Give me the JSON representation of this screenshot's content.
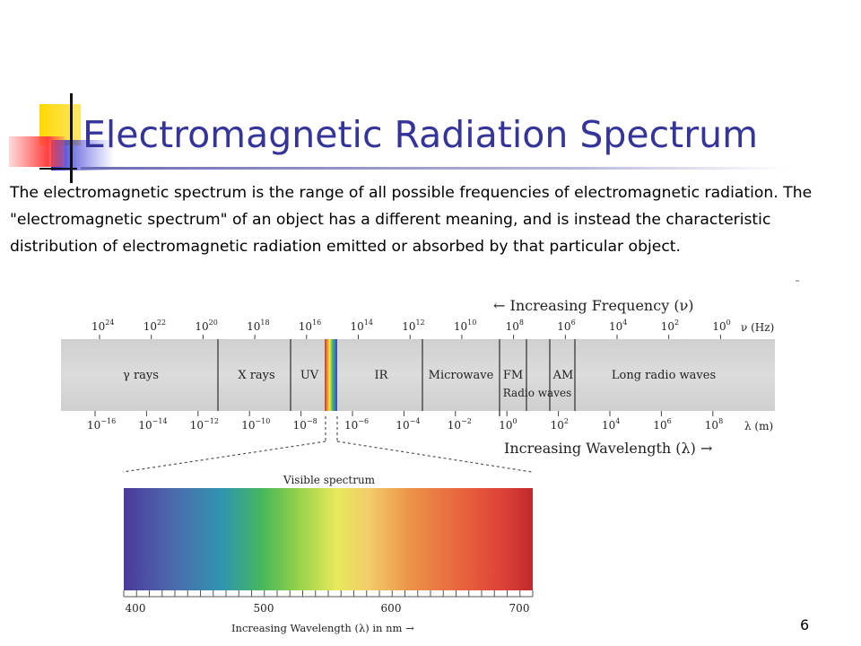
{
  "slide": {
    "title": "Electromagnetic Radiation Spectrum",
    "body": "The electromagnetic spectrum is the range of all possible frequencies of electromagnetic radiation. The \"electromagnetic spectrum\" of an object has a different meaning, and is instead the characteristic distribution of electromagnetic radiation emitted or absorbed by that particular object.",
    "page_number": "6"
  },
  "diagram": {
    "frequency_heading": "← Increasing Frequency (ν)",
    "frequency_unit": "ν (Hz)",
    "frequency_ticks": [
      {
        "base": "10",
        "exp": "24"
      },
      {
        "base": "10",
        "exp": "22"
      },
      {
        "base": "10",
        "exp": "20"
      },
      {
        "base": "10",
        "exp": "18"
      },
      {
        "base": "10",
        "exp": "16"
      },
      {
        "base": "10",
        "exp": "14"
      },
      {
        "base": "10",
        "exp": "12"
      },
      {
        "base": "10",
        "exp": "10"
      },
      {
        "base": "10",
        "exp": "8"
      },
      {
        "base": "10",
        "exp": "6"
      },
      {
        "base": "10",
        "exp": "4"
      },
      {
        "base": "10",
        "exp": "2"
      },
      {
        "base": "10",
        "exp": "0"
      }
    ],
    "wavelength_unit": "λ (m)",
    "wavelength_ticks": [
      {
        "base": "10",
        "exp": "−16"
      },
      {
        "base": "10",
        "exp": "−14"
      },
      {
        "base": "10",
        "exp": "−12"
      },
      {
        "base": "10",
        "exp": "−10"
      },
      {
        "base": "10",
        "exp": "−8"
      },
      {
        "base": "10",
        "exp": "−6"
      },
      {
        "base": "10",
        "exp": "−4"
      },
      {
        "base": "10",
        "exp": "−2"
      },
      {
        "base": "10",
        "exp": "0"
      },
      {
        "base": "10",
        "exp": "2"
      },
      {
        "base": "10",
        "exp": "4"
      },
      {
        "base": "10",
        "exp": "6"
      },
      {
        "base": "10",
        "exp": "8"
      }
    ],
    "wavelength_heading": "Increasing Wavelength (λ) →",
    "regions": [
      "γ rays",
      "X rays",
      "UV",
      "IR",
      "Microwave",
      "FM",
      "AM",
      "Long radio waves"
    ],
    "radio_label": "Radio waves",
    "visible": {
      "title": "Visible spectrum",
      "ticks": [
        "400",
        "500",
        "600",
        "700"
      ],
      "axis_label": "Increasing Wavelength (λ) in nm →"
    }
  }
}
